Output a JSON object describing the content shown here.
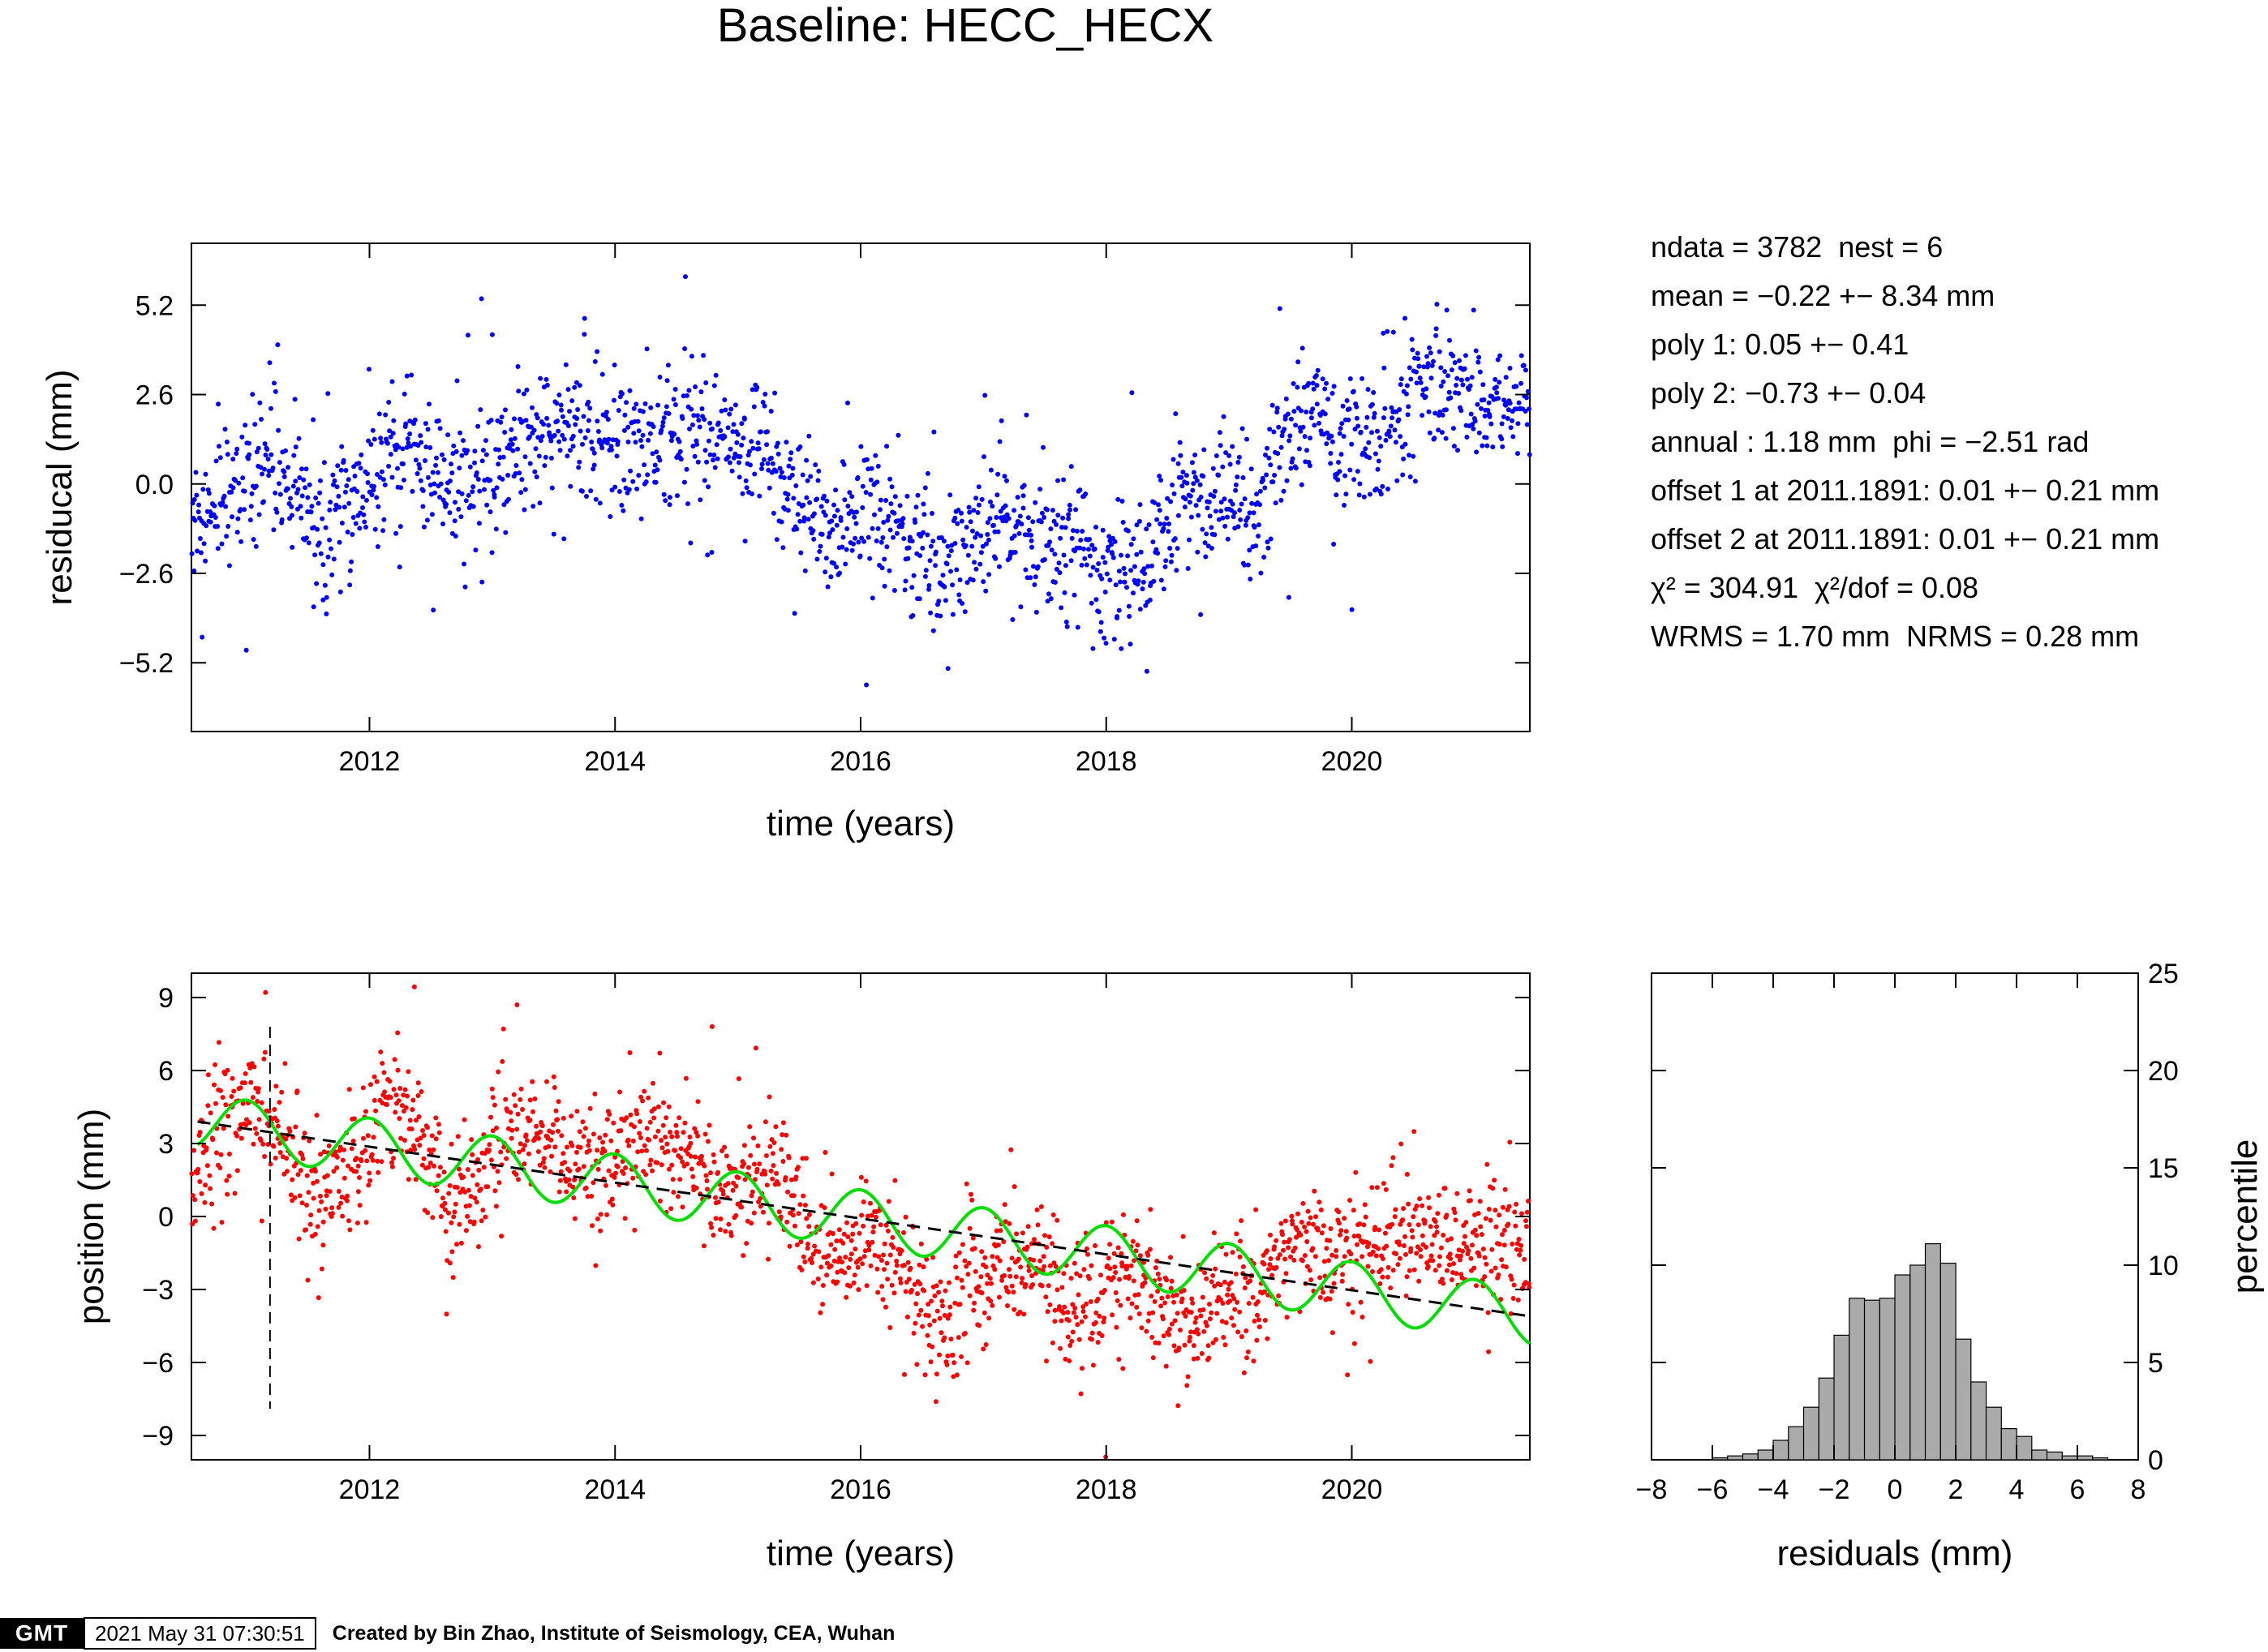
{
  "title": "Baseline: HECC_HECX",
  "stats": [
    "ndata = 3782  nest = 6",
    "mean = −0.22 +− 8.34 mm",
    "poly 1: 0.05 +− 0.41",
    "poly 2: −0.73 +− 0.04",
    "annual : 1.18 mm  phi = −2.51 rad",
    "offset 1 at 2011.1891: 0.01 +− 0.21 mm",
    "offset 2 at 2011.1891: 0.01 +− 0.21 mm",
    "χ² = 304.91  χ²/dof = 0.08",
    "WRMS = 1.70 mm  NRMS = 0.28 mm"
  ],
  "footer": {
    "logo": "GMT",
    "timestamp": "2021 May 31 07:30:51",
    "credit": "Created by Bin Zhao, Institute of Seismology, CEA, Wuhan"
  },
  "colors": {
    "residual_points": "#0000ff",
    "position_points": "#ff0000",
    "annual_fit": "#00dd00",
    "trend": "#000000",
    "histogram": "#aaaaaa"
  },
  "chart_data": [
    {
      "id": "residual",
      "type": "scatter",
      "xlabel": "time (years)",
      "ylabel": "residucal (mm)",
      "xlim": [
        2010.55,
        2021.45
      ],
      "ylim": [
        -7.2,
        7.0
      ],
      "x_ticks": [
        2012,
        2014,
        2016,
        2018,
        2020
      ],
      "y_ticks": [
        5.2,
        2.6,
        0.0,
        -2.6,
        -5.2
      ],
      "y_tick_labels": [
        "5.2",
        "2.6",
        "0.0",
        "−2.6",
        "−5.2"
      ],
      "series": [
        {
          "color": "#0000ff",
          "trend": [
            [
              2010.55,
              -1.0
            ],
            [
              2010.9,
              0.0
            ],
            [
              2011.2,
              0.5
            ],
            [
              2011.6,
              -1.4
            ],
            [
              2011.9,
              -0.3
            ],
            [
              2012.2,
              1.0
            ],
            [
              2012.55,
              0.4
            ],
            [
              2012.8,
              -0.2
            ],
            [
              2013.1,
              0.7
            ],
            [
              2013.5,
              1.5
            ],
            [
              2013.75,
              1.8
            ],
            [
              2014.0,
              0.9
            ],
            [
              2014.4,
              1.3
            ],
            [
              2014.6,
              1.7
            ],
            [
              2014.9,
              0.9
            ],
            [
              2015.2,
              1.2
            ],
            [
              2015.45,
              -0.5
            ],
            [
              2015.75,
              -1.4
            ],
            [
              2016.05,
              -0.9
            ],
            [
              2016.3,
              -1.5
            ],
            [
              2016.6,
              -2.3
            ],
            [
              2016.9,
              -1.6
            ],
            [
              2017.3,
              -1.3
            ],
            [
              2017.7,
              -1.6
            ],
            [
              2018.0,
              -2.4
            ],
            [
              2018.35,
              -2.3
            ],
            [
              2018.6,
              -0.6
            ],
            [
              2018.9,
              -0.7
            ],
            [
              2019.2,
              -1.0
            ],
            [
              2019.4,
              1.1
            ],
            [
              2019.7,
              2.4
            ],
            [
              2019.95,
              1.3
            ],
            [
              2020.2,
              1.3
            ],
            [
              2020.5,
              2.6
            ],
            [
              2020.8,
              3.0
            ],
            [
              2021.1,
              2.2
            ],
            [
              2021.45,
              2.3
            ]
          ],
          "noise_sd": 1.0,
          "n_points": 1900
        }
      ]
    },
    {
      "id": "position",
      "type": "scatter",
      "xlabel": "time (years)",
      "ylabel": "position (mm)",
      "xlim": [
        2010.55,
        2021.45
      ],
      "ylim": [
        -10.0,
        10.0
      ],
      "x_ticks": [
        2012,
        2014,
        2016,
        2018,
        2020
      ],
      "y_ticks": [
        9,
        6,
        3,
        0,
        -3,
        -6,
        -9
      ],
      "y_tick_labels": [
        "9",
        "6",
        "3",
        "0",
        "−3",
        "−6",
        "−9"
      ],
      "offset_marker": {
        "x": 2011.19,
        "ymin": -7.9,
        "ymax": 7.8
      },
      "trend_line": {
        "x": [
          2010.6,
          2021.45
        ],
        "y": [
          3.9,
          -4.1
        ]
      },
      "annual_fit": {
        "amplitude": 1.18,
        "peak_year": 2011.0
      },
      "series": [
        {
          "color": "#ff0000",
          "trend": [
            [
              2010.55,
              1.5
            ],
            [
              2010.8,
              3.5
            ],
            [
              2011.1,
              5.0
            ],
            [
              2011.3,
              3.0
            ],
            [
              2011.6,
              0.0
            ],
            [
              2011.9,
              2.5
            ],
            [
              2012.1,
              5.0
            ],
            [
              2012.4,
              3.5
            ],
            [
              2012.65,
              0.5
            ],
            [
              2012.9,
              1.5
            ],
            [
              2013.1,
              3.5
            ],
            [
              2013.4,
              3.0
            ],
            [
              2013.7,
              2.0
            ],
            [
              2014.0,
              2.0
            ],
            [
              2014.3,
              3.5
            ],
            [
              2014.6,
              2.5
            ],
            [
              2014.9,
              1.0
            ],
            [
              2015.2,
              2.5
            ],
            [
              2015.45,
              0.5
            ],
            [
              2015.7,
              -2.0
            ],
            [
              2016.0,
              -1.0
            ],
            [
              2016.3,
              -1.0
            ],
            [
              2016.6,
              -5.0
            ],
            [
              2016.9,
              -3.0
            ],
            [
              2017.3,
              -1.5
            ],
            [
              2017.6,
              -3.5
            ],
            [
              2017.9,
              -3.5
            ],
            [
              2018.2,
              -2.5
            ],
            [
              2018.6,
              -4.5
            ],
            [
              2018.9,
              -3.5
            ],
            [
              2019.2,
              -3.0
            ],
            [
              2019.5,
              -1.0
            ],
            [
              2019.8,
              -1.5
            ],
            [
              2020.2,
              -1.0
            ],
            [
              2020.5,
              -0.5
            ],
            [
              2020.8,
              -1.5
            ],
            [
              2021.1,
              -0.8
            ],
            [
              2021.45,
              -1.5
            ]
          ],
          "noise_sd": 1.3,
          "n_points": 1900
        }
      ]
    },
    {
      "id": "histogram",
      "type": "bar",
      "xlabel": "residuals (mm)",
      "ylabel": "percentile",
      "xlim": [
        -8,
        8
      ],
      "ylim": [
        0,
        25
      ],
      "x_ticks": [
        -8,
        -6,
        -4,
        -2,
        0,
        2,
        4,
        6,
        8
      ],
      "x_tick_labels": [
        "−8",
        "−6",
        "−4",
        "−2",
        "0",
        "2",
        "4",
        "6",
        "8"
      ],
      "y_ticks": [
        0,
        5,
        10,
        15,
        20,
        25
      ],
      "bin_edges": [
        -6.0,
        -5.5,
        -5.0,
        -4.5,
        -4.0,
        -3.5,
        -3.0,
        -2.5,
        -2.0,
        -1.5,
        -1.0,
        -0.5,
        0.0,
        0.5,
        1.0,
        1.5,
        2.0,
        2.5,
        3.0,
        3.5,
        4.0,
        4.5,
        5.0,
        5.5,
        6.0,
        6.5,
        7.0
      ],
      "values": [
        0.1,
        0.2,
        0.3,
        0.5,
        1.0,
        1.7,
        2.7,
        4.2,
        6.4,
        8.3,
        8.2,
        8.3,
        9.5,
        10.0,
        11.1,
        10.1,
        6.2,
        4.0,
        2.7,
        1.6,
        1.2,
        0.5,
        0.4,
        0.2,
        0.2,
        0.1
      ]
    }
  ]
}
